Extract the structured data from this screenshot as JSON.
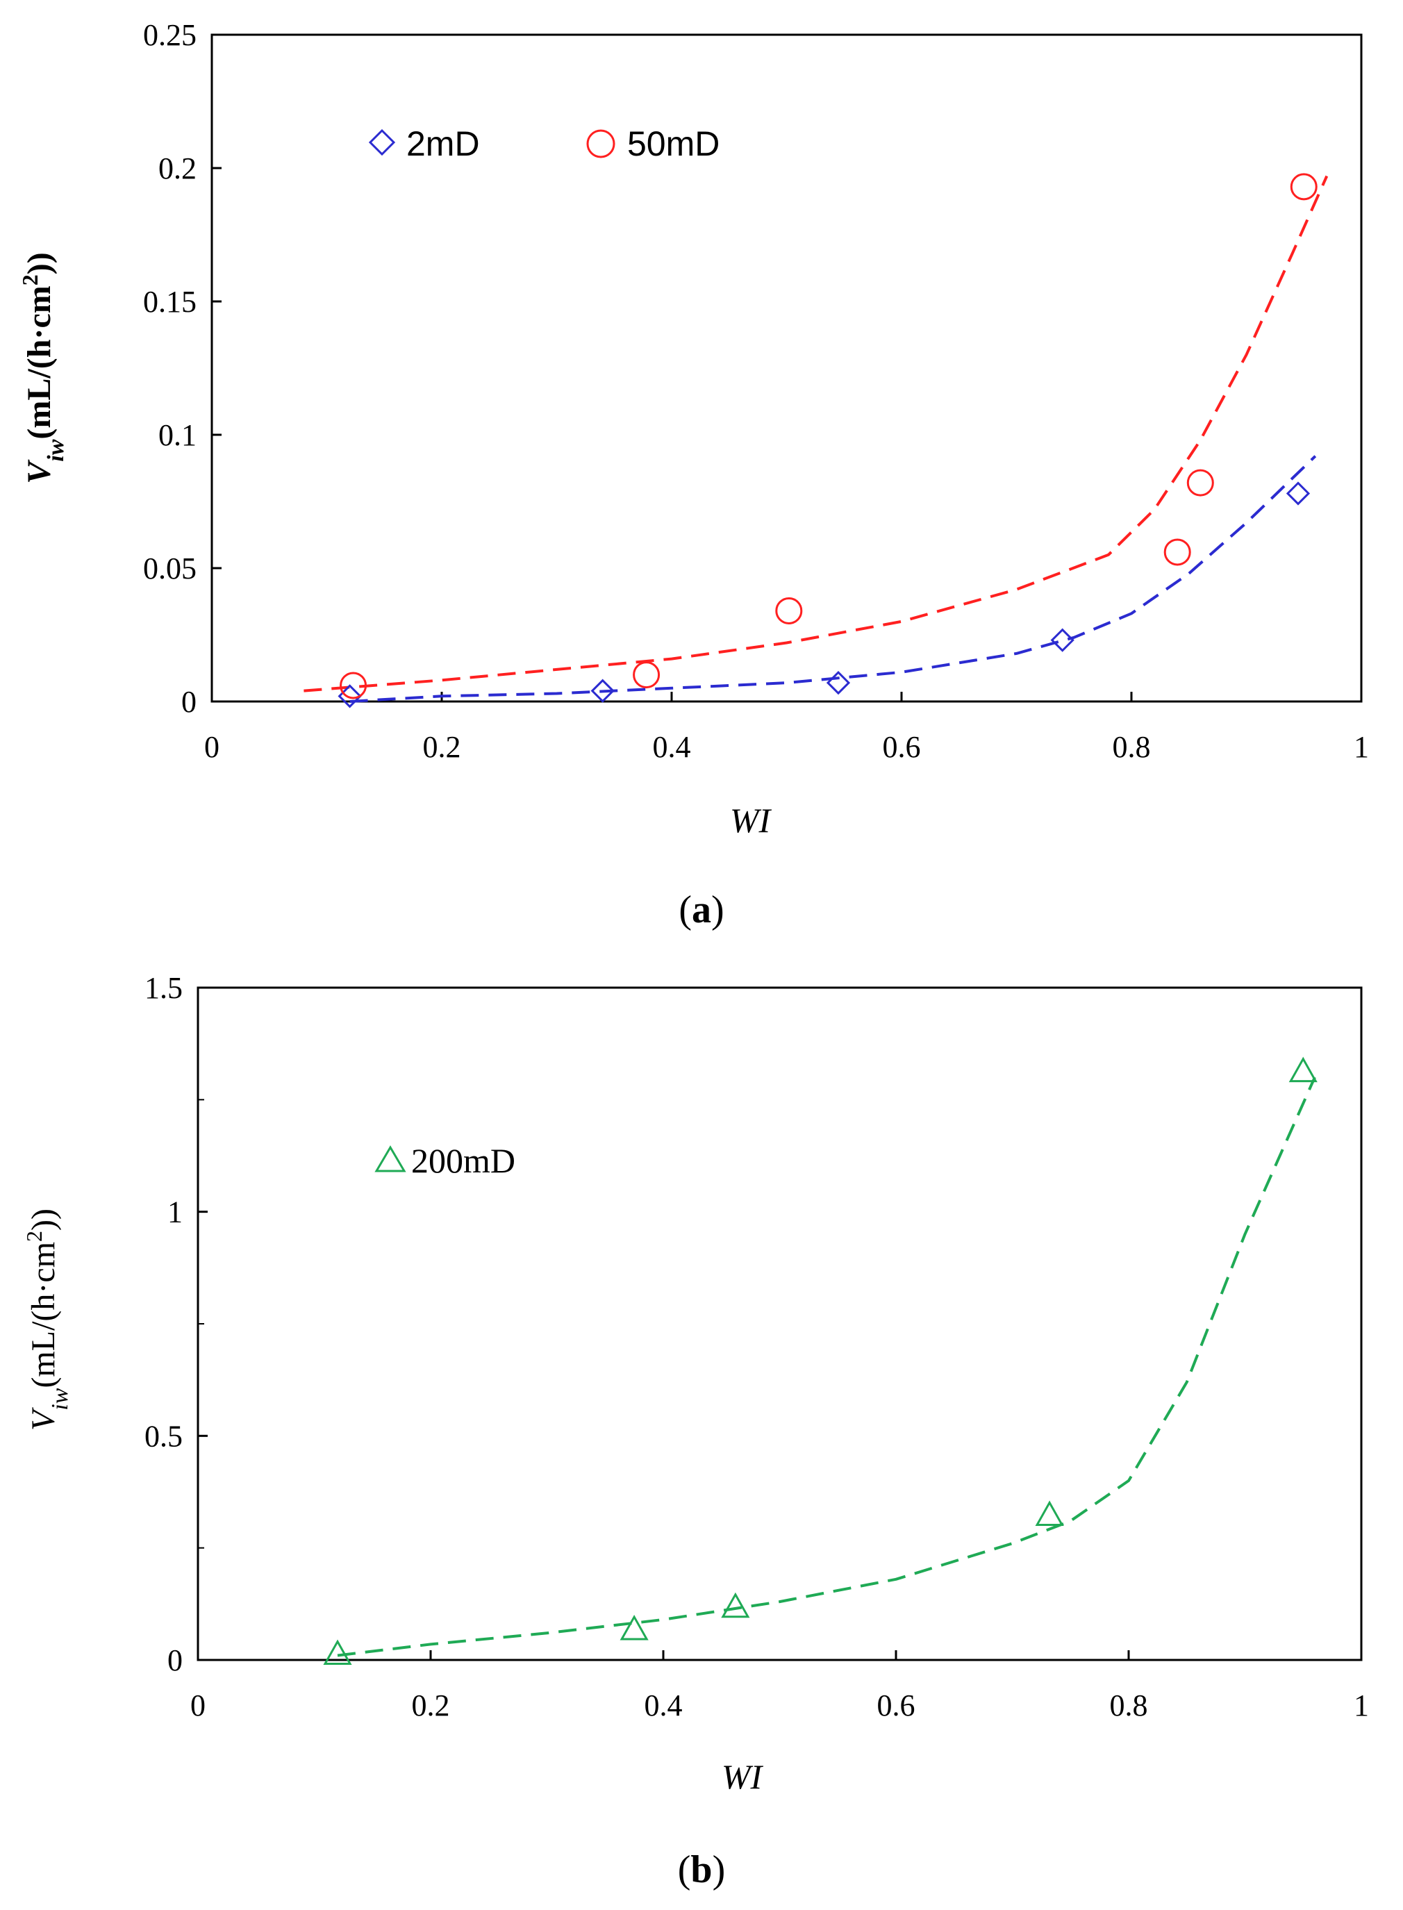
{
  "figure": {
    "caption_a_open": "(",
    "caption_a_letter": "a",
    "caption_a_close": ")",
    "caption_b_open": "(",
    "caption_b_letter": "b",
    "caption_b_close": ")"
  },
  "chart_data": [
    {
      "type": "scatter",
      "panel": "a",
      "title": "",
      "xlabel": "WI",
      "ylabel_main": "V",
      "ylabel_sub": "iw",
      "ylabel_rest": "(mL/(h·cm",
      "ylabel_sup": "2",
      "ylabel_end": "))",
      "xlim": [
        0,
        1
      ],
      "ylim": [
        0,
        0.25
      ],
      "xticks": [
        0,
        0.2,
        0.4,
        0.6,
        0.8,
        1
      ],
      "xtick_labels": [
        "0",
        "0.2",
        "0.4",
        "0.6",
        "0.8",
        "1"
      ],
      "yticks": [
        0,
        0.05,
        0.1,
        0.15,
        0.2,
        0.25
      ],
      "ytick_labels": [
        "0",
        "0.05",
        "0.1",
        "0.15",
        "0.2",
        "0.25"
      ],
      "grid": false,
      "legend_position": "top-left",
      "series": [
        {
          "name": "2mD",
          "marker": "diamond",
          "color": "#2b2bd0",
          "x": [
            0.12,
            0.34,
            0.545,
            0.74,
            0.945
          ],
          "y": [
            0.002,
            0.004,
            0.007,
            0.023,
            0.078
          ]
        },
        {
          "name": "50mD",
          "marker": "circle",
          "color": "#ff2020",
          "x": [
            0.123,
            0.378,
            0.502,
            0.84,
            0.86,
            0.95
          ],
          "y": [
            0.006,
            0.01,
            0.034,
            0.056,
            0.082,
            0.193
          ]
        }
      ],
      "fits": [
        {
          "series": "2mD",
          "color": "#2b2bd0",
          "style": "dashed",
          "x": [
            0.12,
            0.2,
            0.3,
            0.4,
            0.5,
            0.6,
            0.7,
            0.75,
            0.8,
            0.85,
            0.9,
            0.96
          ],
          "y": [
            0.0,
            0.002,
            0.003,
            0.005,
            0.007,
            0.011,
            0.018,
            0.024,
            0.033,
            0.048,
            0.067,
            0.092
          ]
        },
        {
          "series": "50mD",
          "color": "#ff2020",
          "style": "dashed",
          "x": [
            0.08,
            0.2,
            0.3,
            0.4,
            0.5,
            0.6,
            0.7,
            0.78,
            0.82,
            0.86,
            0.9,
            0.94,
            0.97
          ],
          "y": [
            0.004,
            0.008,
            0.012,
            0.016,
            0.022,
            0.03,
            0.042,
            0.055,
            0.072,
            0.098,
            0.13,
            0.168,
            0.197
          ]
        }
      ]
    },
    {
      "type": "scatter",
      "panel": "b",
      "title": "",
      "xlabel": "WI",
      "ylabel_main": "V",
      "ylabel_sub": "iw",
      "ylabel_rest": "(mL/(h·cm",
      "ylabel_sup": "2",
      "ylabel_end": "))",
      "xlim": [
        0,
        1
      ],
      "ylim": [
        0,
        1.5
      ],
      "xticks": [
        0,
        0.2,
        0.4,
        0.6,
        0.8,
        1
      ],
      "xtick_labels": [
        "0",
        "0.2",
        "0.4",
        "0.6",
        "0.8",
        "1"
      ],
      "yticks": [
        0,
        0.5,
        1,
        1.5
      ],
      "ytick_labels": [
        "0",
        "0.5",
        "1",
        "1.5"
      ],
      "minor_yticks": [
        0.25,
        0.75,
        1.25
      ],
      "grid": false,
      "legend_position": "top-left",
      "series": [
        {
          "name": "200mD",
          "marker": "triangle",
          "color": "#1faa55",
          "x": [
            0.12,
            0.375,
            0.462,
            0.732,
            0.95
          ],
          "y": [
            0.01,
            0.065,
            0.115,
            0.32,
            1.31
          ]
        }
      ],
      "fits": [
        {
          "series": "200mD",
          "color": "#1faa55",
          "style": "dashed",
          "x": [
            0.12,
            0.2,
            0.3,
            0.4,
            0.5,
            0.6,
            0.7,
            0.75,
            0.8,
            0.85,
            0.9,
            0.96
          ],
          "y": [
            0.01,
            0.035,
            0.06,
            0.09,
            0.13,
            0.18,
            0.26,
            0.31,
            0.4,
            0.62,
            0.95,
            1.3
          ]
        }
      ]
    }
  ]
}
